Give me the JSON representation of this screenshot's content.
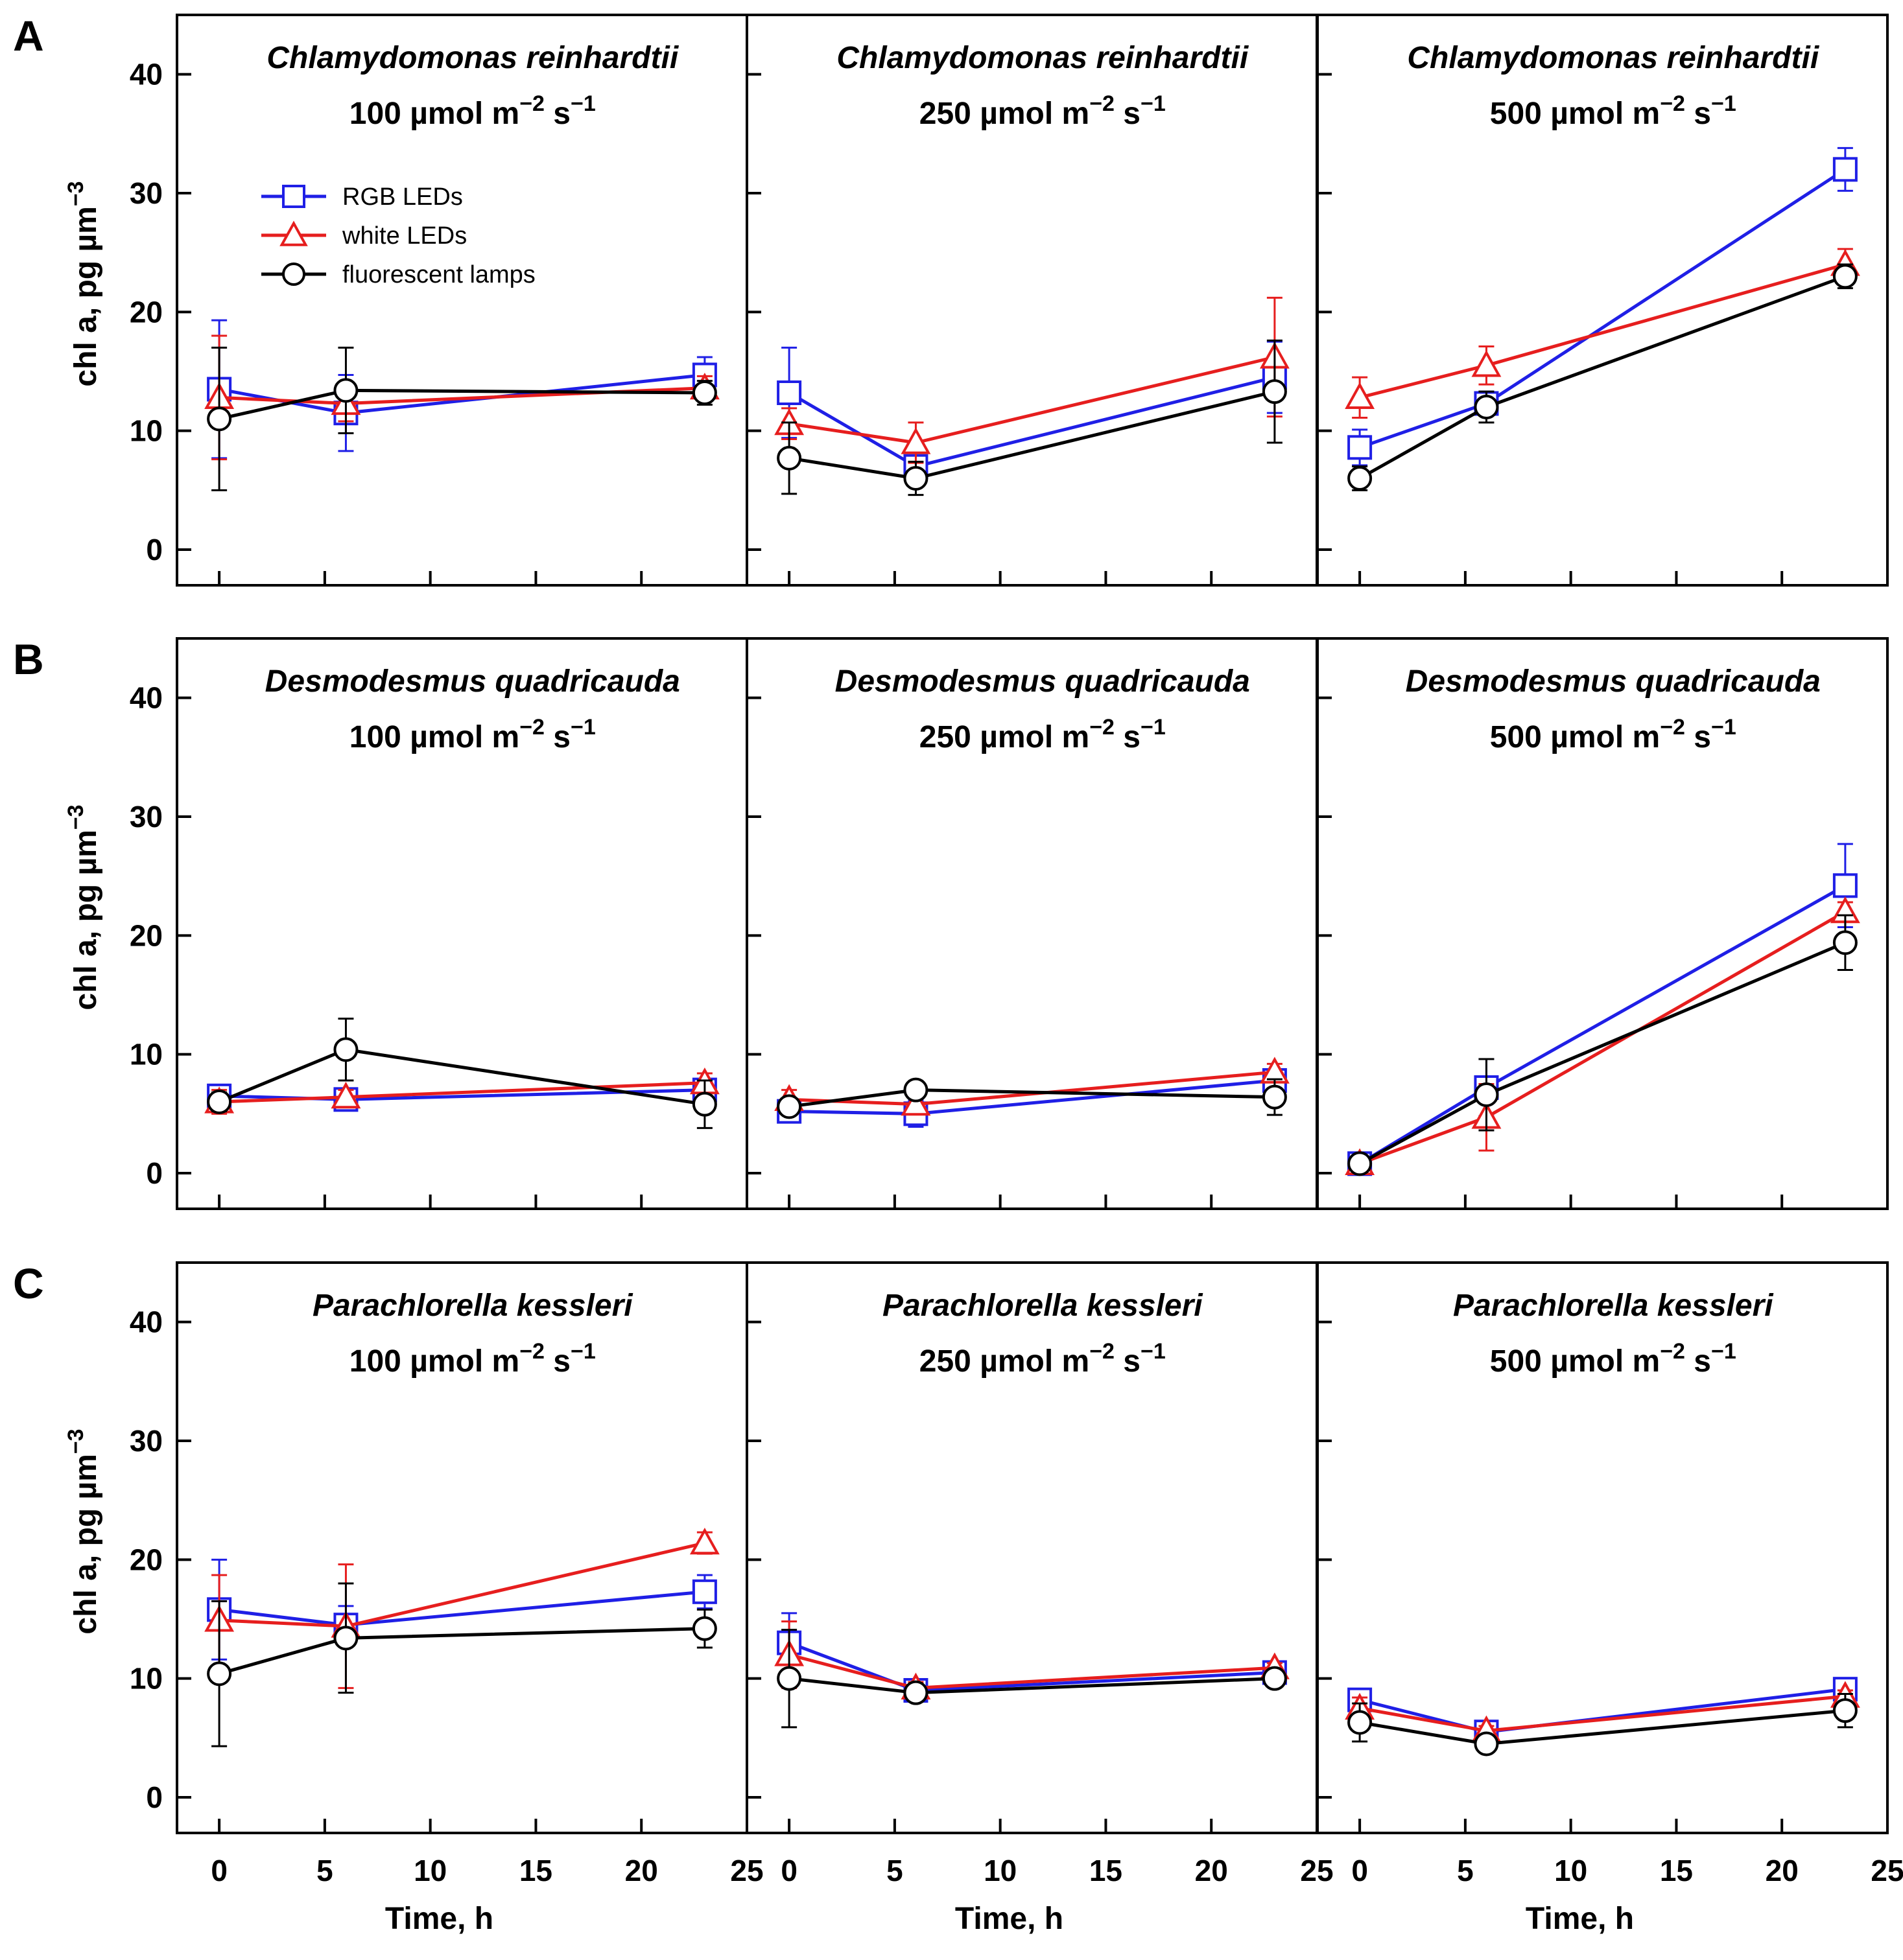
{
  "colors": {
    "rgb": "#1f1fe6",
    "white": "#e61e1e",
    "fluor": "#000000"
  },
  "legend": [
    {
      "key": "rgb",
      "label": "RGB LEDs",
      "marker": "square"
    },
    {
      "key": "white",
      "label": "white LEDs",
      "marker": "triangle"
    },
    {
      "key": "fluor",
      "label": "fluorescent lamps",
      "marker": "circle"
    }
  ],
  "ylabel": {
    "prefix": "chl a, pg  µm",
    "sup": "−3"
  },
  "xlabel": "Time, h",
  "unit": {
    "base": "µmol m",
    "sup1": "−2",
    "mid": " s",
    "sup2": "−1"
  },
  "rows": [
    {
      "letter": "A",
      "species": "Chlamydomonas reinhardtii"
    },
    {
      "letter": "B",
      "species": "Desmodesmus quadricauda"
    },
    {
      "letter": "C",
      "species": "Parachlorella kessleri"
    }
  ],
  "intensities": [
    "100",
    "250",
    "500"
  ],
  "chart_data": {
    "type": "line",
    "xlim": [
      -2,
      25
    ],
    "ylim": [
      -3,
      45
    ],
    "xticks": [
      0,
      5,
      10,
      15,
      20,
      25
    ],
    "yticks": [
      0,
      10,
      20,
      30,
      40
    ],
    "x": [
      0,
      6,
      23
    ],
    "panels": [
      {
        "row": "A",
        "intensity": "100",
        "series": [
          {
            "name": "RGB LEDs",
            "values": [
              13.5,
              11.5,
              14.7
            ],
            "err": [
              5.8,
              3.2,
              1.5
            ]
          },
          {
            "name": "white LEDs",
            "values": [
              12.8,
              12.3,
              13.6
            ],
            "err": [
              5.2,
              1.5,
              1.0
            ]
          },
          {
            "name": "fluorescent lamps",
            "values": [
              11.0,
              13.4,
              13.2
            ],
            "err": [
              6.0,
              3.6,
              1.0
            ]
          }
        ]
      },
      {
        "row": "A",
        "intensity": "250",
        "series": [
          {
            "name": "RGB LEDs",
            "values": [
              13.2,
              7.0,
              14.5
            ],
            "err": [
              3.8,
              1.5,
              3.0
            ]
          },
          {
            "name": "white LEDs",
            "values": [
              10.6,
              9.0,
              16.2
            ],
            "err": [
              1.3,
              1.7,
              5.0
            ]
          },
          {
            "name": "fluorescent lamps",
            "values": [
              7.7,
              6.0,
              13.3
            ],
            "err": [
              3.0,
              1.4,
              4.3
            ]
          }
        ]
      },
      {
        "row": "A",
        "intensity": "500",
        "series": [
          {
            "name": "RGB LEDs",
            "values": [
              8.6,
              12.3,
              32.0
            ],
            "err": [
              1.5,
              1.0,
              1.8
            ]
          },
          {
            "name": "white LEDs",
            "values": [
              12.8,
              15.5,
              24.0
            ],
            "err": [
              1.7,
              1.6,
              1.3
            ]
          },
          {
            "name": "fluorescent lamps",
            "values": [
              6.0,
              12.0,
              23.0
            ],
            "err": [
              1.0,
              1.3,
              1.0
            ]
          }
        ]
      },
      {
        "row": "B",
        "intensity": "100",
        "series": [
          {
            "name": "RGB LEDs",
            "values": [
              6.5,
              6.2,
              7.0
            ],
            "err": [
              0.7,
              0.6,
              0.7
            ]
          },
          {
            "name": "white LEDs",
            "values": [
              6.0,
              6.4,
              7.6
            ],
            "err": [
              1.0,
              0.6,
              0.8
            ]
          },
          {
            "name": "fluorescent lamps",
            "values": [
              6.0,
              10.4,
              5.8
            ],
            "err": [
              0.8,
              2.6,
              2.0
            ]
          }
        ]
      },
      {
        "row": "B",
        "intensity": "250",
        "series": [
          {
            "name": "RGB LEDs",
            "values": [
              5.2,
              5.0,
              7.8
            ],
            "err": [
              0.7,
              1.1,
              0.6
            ]
          },
          {
            "name": "white LEDs",
            "values": [
              6.2,
              5.8,
              8.5
            ],
            "err": [
              0.8,
              0.7,
              0.7
            ]
          },
          {
            "name": "fluorescent lamps",
            "values": [
              5.6,
              7.0,
              6.4
            ],
            "err": [
              0.5,
              0.5,
              1.5
            ]
          }
        ]
      },
      {
        "row": "B",
        "intensity": "500",
        "series": [
          {
            "name": "RGB LEDs",
            "values": [
              0.8,
              7.2,
              24.2
            ],
            "err": [
              0.3,
              2.4,
              3.5
            ]
          },
          {
            "name": "white LEDs",
            "values": [
              0.8,
              4.7,
              22.0
            ],
            "err": [
              0.3,
              2.8,
              0.8
            ]
          },
          {
            "name": "fluorescent lamps",
            "values": [
              0.8,
              6.6,
              19.4
            ],
            "err": [
              0.3,
              3.0,
              2.3
            ]
          }
        ]
      },
      {
        "row": "C",
        "intensity": "100",
        "series": [
          {
            "name": "RGB LEDs",
            "values": [
              15.8,
              14.5,
              17.3
            ],
            "err": [
              4.2,
              1.6,
              1.4
            ]
          },
          {
            "name": "white LEDs",
            "values": [
              14.9,
              14.4,
              21.4
            ],
            "err": [
              3.8,
              5.2,
              0.9
            ]
          },
          {
            "name": "fluorescent lamps",
            "values": [
              10.4,
              13.4,
              14.2
            ],
            "err": [
              6.1,
              4.6,
              1.6
            ]
          }
        ]
      },
      {
        "row": "C",
        "intensity": "250",
        "series": [
          {
            "name": "RGB LEDs",
            "values": [
              13.0,
              9.0,
              10.5
            ],
            "err": [
              2.5,
              0.5,
              0.5
            ]
          },
          {
            "name": "white LEDs",
            "values": [
              12.0,
              9.2,
              10.9
            ],
            "err": [
              2.8,
              0.5,
              0.4
            ]
          },
          {
            "name": "fluorescent lamps",
            "values": [
              10.0,
              8.8,
              10.0
            ],
            "err": [
              4.1,
              0.4,
              0.4
            ]
          }
        ]
      },
      {
        "row": "C",
        "intensity": "500",
        "series": [
          {
            "name": "RGB LEDs",
            "values": [
              8.2,
              5.5,
              9.1
            ],
            "err": [
              0.8,
              0.4,
              0.5
            ]
          },
          {
            "name": "white LEDs",
            "values": [
              7.5,
              5.6,
              8.5
            ],
            "err": [
              0.9,
              0.4,
              0.5
            ]
          },
          {
            "name": "fluorescent lamps",
            "values": [
              6.3,
              4.5,
              7.3
            ],
            "err": [
              1.6,
              0.4,
              1.4
            ]
          }
        ]
      }
    ]
  }
}
